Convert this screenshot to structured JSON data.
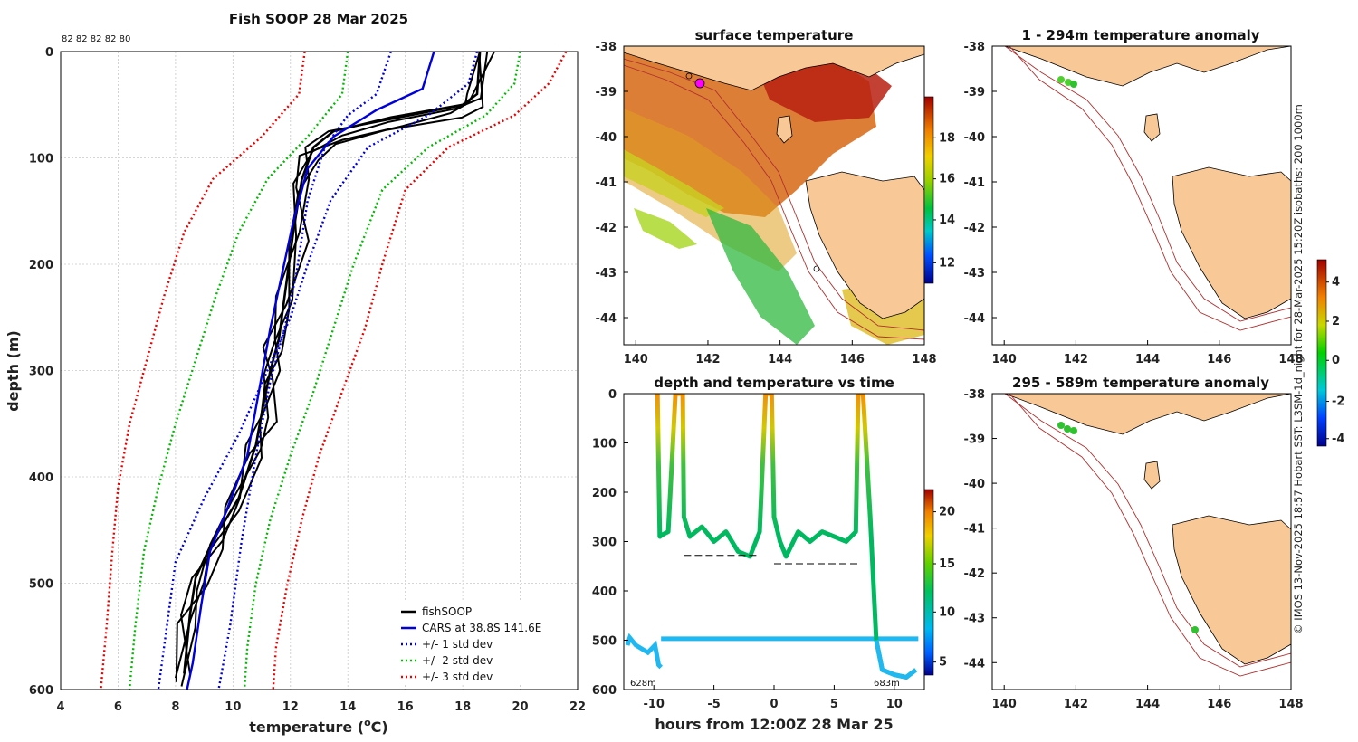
{
  "panels": {
    "profile": {
      "title": "Fish SOOP 28 Mar 2025",
      "top_counts": "82 82 82 82 80",
      "xlabel_main": "temperature (",
      "xlabel_sup": "o",
      "xlabel_end": "C)",
      "ylabel": "depth (m)"
    },
    "sst": {
      "title": "surface temperature"
    },
    "timeseries": {
      "title": "depth and temperature vs time",
      "xlabel": "hours from 12:00Z 28 Mar 25",
      "start_depth_label": "628m",
      "end_depth_label": "683m"
    },
    "anom_top": {
      "title": "1 - 294m temperature anomaly"
    },
    "anom_bottom": {
      "title": "295 - 589m temperature anomaly"
    },
    "side_caption": "© IMOS 13-Nov-2025 18:57 Hobart SST: L3SM-1d_night for 28-Mar-2025 15:20Z isobaths: 200  1000m"
  },
  "colorbars": {
    "sst": {
      "ticks": [
        "12",
        "14",
        "16",
        "18"
      ]
    },
    "timeseries": {
      "ticks": [
        "5",
        "10",
        "15",
        "20"
      ]
    },
    "anomaly": {
      "ticks": [
        "-4",
        "-2",
        "0",
        "2",
        "4"
      ]
    }
  },
  "maps": {
    "lon_ticks": [
      "140",
      "142",
      "144",
      "146",
      "148"
    ],
    "lat_ticks": [
      "-38",
      "-39",
      "-40",
      "-41",
      "-42",
      "-43",
      "-44"
    ]
  },
  "chart_data": [
    {
      "type": "line",
      "title": "Fish SOOP 28 Mar 2025",
      "xlabel": "temperature (oC)",
      "ylabel": "depth (m)",
      "xlim": [
        4,
        22
      ],
      "ylim": [
        600,
        0
      ],
      "xticks": [
        4,
        6,
        8,
        10,
        12,
        14,
        16,
        18,
        20,
        22
      ],
      "yticks": [
        0,
        100,
        200,
        300,
        400,
        500,
        600
      ],
      "legend_position": "bottom-right",
      "legend": [
        "fishSOOP",
        "CARS at 38.8S 141.6E",
        "+/- 1 std dev",
        "+/- 2 std dev",
        "+/- 3 std dev"
      ],
      "series": [
        {
          "name": "fishSOOP",
          "color": "#000000",
          "points": [
            [
              18.6,
              0
            ],
            [
              18.5,
              40
            ],
            [
              18.0,
              50
            ],
            [
              15.5,
              62
            ],
            [
              13.5,
              75
            ],
            [
              12.8,
              90
            ],
            [
              12.4,
              120
            ],
            [
              12.1,
              170
            ],
            [
              11.8,
              230
            ],
            [
              11.6,
              270
            ],
            [
              11.3,
              300
            ],
            [
              11.0,
              340
            ],
            [
              10.8,
              370
            ],
            [
              10.2,
              420
            ],
            [
              9.3,
              460
            ],
            [
              8.7,
              495
            ],
            [
              8.5,
              530
            ],
            [
              8.3,
              585
            ]
          ]
        },
        {
          "name": "CARS at 38.8S 141.6E",
          "color": "#0000dd",
          "points": [
            [
              17.0,
              0
            ],
            [
              16.6,
              35
            ],
            [
              15.0,
              55
            ],
            [
              13.5,
              80
            ],
            [
              12.6,
              110
            ],
            [
              12.1,
              160
            ],
            [
              11.7,
              210
            ],
            [
              11.3,
              260
            ],
            [
              10.9,
              320
            ],
            [
              10.5,
              380
            ],
            [
              9.8,
              430
            ],
            [
              9.2,
              470
            ],
            [
              8.9,
              520
            ],
            [
              8.6,
              575
            ],
            [
              8.4,
              600
            ]
          ]
        },
        {
          "name": "+1 std dev",
          "color": "#0000dd",
          "points": [
            [
              15.5,
              0
            ],
            [
              15.0,
              40
            ],
            [
              14.0,
              60
            ],
            [
              13.2,
              90
            ],
            [
              12.6,
              140
            ],
            [
              12.2,
              210
            ],
            [
              11.8,
              260
            ],
            [
              11.3,
              310
            ],
            [
              10.8,
              380
            ],
            [
              10.3,
              460
            ],
            [
              9.9,
              540
            ],
            [
              9.5,
              600
            ]
          ]
        },
        {
          "name": "-1 std dev",
          "color": "#0000dd",
          "points": [
            [
              18.5,
              0
            ],
            [
              18.2,
              30
            ],
            [
              16.8,
              60
            ],
            [
              14.7,
              90
            ],
            [
              13.4,
              140
            ],
            [
              12.6,
              200
            ],
            [
              12.0,
              250
            ],
            [
              11.2,
              300
            ],
            [
              10.2,
              360
            ],
            [
              9.0,
              420
            ],
            [
              8.0,
              480
            ],
            [
              7.4,
              600
            ]
          ]
        },
        {
          "name": "+2 std dev",
          "color": "#00bb00",
          "points": [
            [
              20.0,
              0
            ],
            [
              19.8,
              30
            ],
            [
              18.8,
              60
            ],
            [
              16.8,
              90
            ],
            [
              15.2,
              130
            ],
            [
              14.2,
              200
            ],
            [
              13.5,
              260
            ],
            [
              12.8,
              320
            ],
            [
              12.0,
              380
            ],
            [
              11.3,
              440
            ],
            [
              10.8,
              500
            ],
            [
              10.5,
              560
            ],
            [
              10.4,
              600
            ]
          ]
        },
        {
          "name": "-2 std dev",
          "color": "#00bb00",
          "points": [
            [
              14.0,
              0
            ],
            [
              13.8,
              40
            ],
            [
              12.6,
              80
            ],
            [
              11.2,
              120
            ],
            [
              10.2,
              170
            ],
            [
              9.4,
              230
            ],
            [
              8.7,
              290
            ],
            [
              8.0,
              350
            ],
            [
              7.4,
              410
            ],
            [
              6.9,
              470
            ],
            [
              6.6,
              540
            ],
            [
              6.4,
              600
            ]
          ]
        },
        {
          "name": "+3 std dev",
          "color": "#ee0000",
          "points": [
            [
              21.6,
              0
            ],
            [
              21.0,
              30
            ],
            [
              19.8,
              60
            ],
            [
              17.5,
              90
            ],
            [
              16.0,
              130
            ],
            [
              15.2,
              200
            ],
            [
              14.6,
              260
            ],
            [
              13.8,
              320
            ],
            [
              13.0,
              380
            ],
            [
              12.4,
              440
            ],
            [
              11.9,
              500
            ],
            [
              11.5,
              560
            ],
            [
              11.4,
              600
            ]
          ]
        },
        {
          "name": "-3 std dev",
          "color": "#ee0000",
          "points": [
            [
              12.5,
              0
            ],
            [
              12.3,
              40
            ],
            [
              11.0,
              80
            ],
            [
              9.3,
              120
            ],
            [
              8.3,
              170
            ],
            [
              7.6,
              230
            ],
            [
              7.0,
              290
            ],
            [
              6.4,
              350
            ],
            [
              6.0,
              410
            ],
            [
              5.8,
              470
            ],
            [
              5.6,
              540
            ],
            [
              5.4,
              600
            ]
          ]
        }
      ]
    },
    {
      "type": "scatter",
      "title": "depth and temperature vs time",
      "xlabel": "hours from 12:00Z 28 Mar 25",
      "ylabel": "",
      "xlim": [
        -12.5,
        12.5
      ],
      "ylim": [
        600,
        0
      ],
      "xticks": [
        -10,
        -5,
        0,
        5,
        10
      ],
      "yticks": [
        0,
        100,
        200,
        300,
        400,
        500,
        600
      ],
      "colorbar_range": [
        3.5,
        22
      ],
      "bottom_depth_series": [
        [
          -12.2,
          510
        ],
        [
          -12,
          495
        ],
        [
          -11.5,
          510
        ],
        [
          -10.5,
          525
        ],
        [
          -9.9,
          510
        ],
        [
          -9.6,
          550
        ],
        [
          -9.4,
          555
        ]
      ],
      "fishing_track": [
        [
          -9.7,
          0
        ],
        [
          -9.6,
          150
        ],
        [
          -9.5,
          290
        ],
        [
          -9.2,
          285
        ],
        [
          -8.8,
          280
        ],
        [
          -8.2,
          0
        ],
        [
          -7.6,
          0
        ],
        [
          -7.5,
          250
        ],
        [
          -7,
          290
        ],
        [
          -6,
          270
        ],
        [
          -5,
          300
        ],
        [
          -4,
          280
        ],
        [
          -3,
          320
        ],
        [
          -2,
          330
        ],
        [
          -1.2,
          280
        ],
        [
          -0.7,
          0
        ],
        [
          -0.2,
          0
        ],
        [
          0,
          250
        ],
        [
          0.5,
          300
        ],
        [
          1,
          330
        ],
        [
          2,
          280
        ],
        [
          3,
          300
        ],
        [
          4,
          280
        ],
        [
          5,
          290
        ],
        [
          6,
          300
        ],
        [
          6.8,
          280
        ],
        [
          7,
          0
        ],
        [
          7.4,
          0
        ],
        [
          8,
          250
        ],
        [
          8.3,
          400
        ],
        [
          8.5,
          500
        ],
        [
          9,
          560
        ],
        [
          10,
          570
        ],
        [
          11,
          575
        ],
        [
          11.8,
          560
        ]
      ],
      "mean_depth_segments": [
        [
          [
            -7.5,
            328
          ],
          [
            -1.2,
            328
          ]
        ],
        [
          [
            0,
            345
          ],
          [
            7,
            345
          ]
        ]
      ]
    }
  ]
}
